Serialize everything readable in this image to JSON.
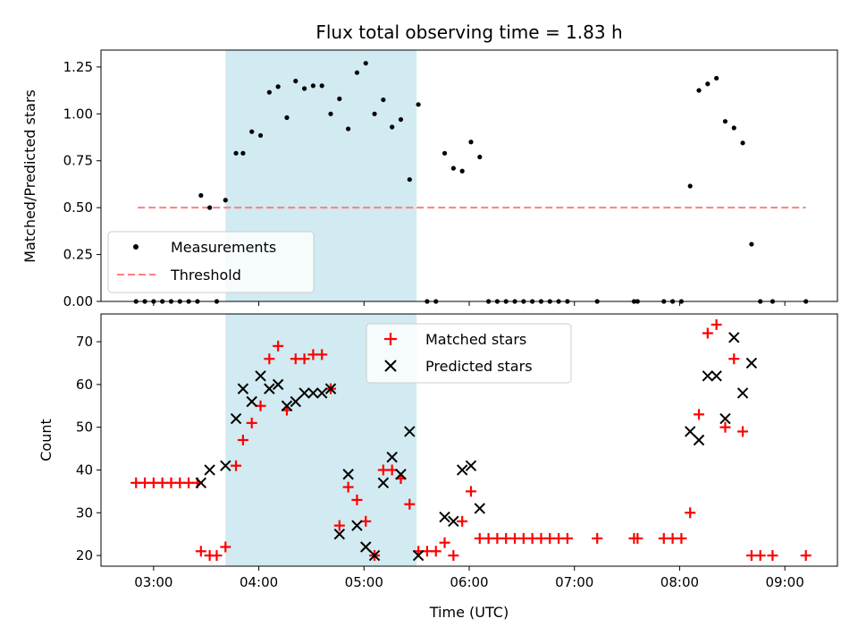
{
  "colors": {
    "measurement": "#000000",
    "threshold": "#ff7f7f",
    "matched": "#ff0000",
    "predicted": "#000000",
    "shade": "#add8e6"
  },
  "chart_data": [
    {
      "type": "scatter",
      "title": "Flux total observing time = 1.83 h",
      "xlabel": "",
      "ylabel": "Matched/Predicted stars",
      "xlim": [
        "02:30",
        "09:30"
      ],
      "ylim": [
        0,
        1.34
      ],
      "y_ticks": [
        "0.00",
        "0.25",
        "0.50",
        "0.75",
        "1.00",
        "1.25"
      ],
      "shaded_region": {
        "x_start": "03:41",
        "x_end": "05:30"
      },
      "legend_position": "lower-left",
      "legend": [
        "Measurements",
        "Threshold"
      ],
      "threshold": {
        "name": "Threshold",
        "y": 0.5,
        "x_start": "02:51",
        "x_end": "09:12"
      },
      "series": [
        {
          "name": "Measurements",
          "marker": "dot",
          "points": [
            [
              "02:50",
              0
            ],
            [
              "02:55",
              0
            ],
            [
              "03:00",
              0
            ],
            [
              "03:05",
              0
            ],
            [
              "03:10",
              0
            ],
            [
              "03:15",
              0
            ],
            [
              "03:20",
              0
            ],
            [
              "03:25",
              0
            ],
            [
              "03:27",
              0.565
            ],
            [
              "03:32",
              0.5
            ],
            [
              "03:36",
              0
            ],
            [
              "03:41",
              0.54
            ],
            [
              "03:47",
              0.79
            ],
            [
              "03:51",
              0.79
            ],
            [
              "03:56",
              0.905
            ],
            [
              "04:01",
              0.885
            ],
            [
              "04:06",
              1.115
            ],
            [
              "04:11",
              1.145
            ],
            [
              "04:16",
              0.98
            ],
            [
              "04:21",
              1.175
            ],
            [
              "04:26",
              1.135
            ],
            [
              "04:31",
              1.15
            ],
            [
              "04:36",
              1.15
            ],
            [
              "04:41",
              1.0
            ],
            [
              "04:46",
              1.08
            ],
            [
              "04:51",
              0.92
            ],
            [
              "04:56",
              1.22
            ],
            [
              "05:01",
              1.27
            ],
            [
              "05:06",
              1.0
            ],
            [
              "05:11",
              1.075
            ],
            [
              "05:16",
              0.93
            ],
            [
              "05:21",
              0.97
            ],
            [
              "05:26",
              0.65
            ],
            [
              "05:31",
              1.05
            ],
            [
              "05:36",
              0
            ],
            [
              "05:41",
              0
            ],
            [
              "05:46",
              0.79
            ],
            [
              "05:51",
              0.71
            ],
            [
              "05:56",
              0.695
            ],
            [
              "06:01",
              0.85
            ],
            [
              "06:06",
              0.77
            ],
            [
              "06:11",
              0
            ],
            [
              "06:16",
              0
            ],
            [
              "06:21",
              0
            ],
            [
              "06:26",
              0
            ],
            [
              "06:31",
              0
            ],
            [
              "06:36",
              0
            ],
            [
              "06:41",
              0
            ],
            [
              "06:46",
              0
            ],
            [
              "06:51",
              0
            ],
            [
              "06:56",
              0
            ],
            [
              "07:13",
              0
            ],
            [
              "07:34",
              0
            ],
            [
              "07:36",
              0
            ],
            [
              "07:51",
              0
            ],
            [
              "07:56",
              0
            ],
            [
              "08:01",
              0
            ],
            [
              "08:06",
              0.615
            ],
            [
              "08:11",
              1.125
            ],
            [
              "08:16",
              1.16
            ],
            [
              "08:21",
              1.19
            ],
            [
              "08:26",
              0.96
            ],
            [
              "08:31",
              0.925
            ],
            [
              "08:36",
              0.845
            ],
            [
              "08:41",
              0.305
            ],
            [
              "08:46",
              0
            ],
            [
              "08:53",
              0
            ],
            [
              "09:12",
              0
            ]
          ]
        }
      ]
    },
    {
      "type": "scatter",
      "title": "",
      "xlabel": "Time (UTC)",
      "ylabel": "Count",
      "xlim": [
        "02:30",
        "09:30"
      ],
      "ylim": [
        17.5,
        76.5
      ],
      "y_ticks": [
        "20",
        "30",
        "40",
        "50",
        "60",
        "70"
      ],
      "x_ticks": [
        "03:00",
        "04:00",
        "05:00",
        "06:00",
        "07:00",
        "08:00",
        "09:00"
      ],
      "shaded_region": {
        "x_start": "03:41",
        "x_end": "05:30"
      },
      "legend_position": "upper-center",
      "legend": [
        "Matched stars",
        "Predicted stars"
      ],
      "series": [
        {
          "name": "Matched stars",
          "marker": "plus",
          "points": [
            [
              "02:50",
              37
            ],
            [
              "02:55",
              37
            ],
            [
              "03:00",
              37
            ],
            [
              "03:05",
              37
            ],
            [
              "03:10",
              37
            ],
            [
              "03:15",
              37
            ],
            [
              "03:20",
              37
            ],
            [
              "03:25",
              37
            ],
            [
              "03:27",
              21
            ],
            [
              "03:32",
              20
            ],
            [
              "03:36",
              20
            ],
            [
              "03:41",
              22
            ],
            [
              "03:47",
              41
            ],
            [
              "03:51",
              47
            ],
            [
              "03:56",
              51
            ],
            [
              "04:01",
              55
            ],
            [
              "04:06",
              66
            ],
            [
              "04:11",
              69
            ],
            [
              "04:16",
              54
            ],
            [
              "04:21",
              66
            ],
            [
              "04:26",
              66
            ],
            [
              "04:31",
              67
            ],
            [
              "04:36",
              67
            ],
            [
              "04:41",
              59
            ],
            [
              "04:46",
              27
            ],
            [
              "04:51",
              36
            ],
            [
              "04:56",
              33
            ],
            [
              "05:01",
              28
            ],
            [
              "05:06",
              20
            ],
            [
              "05:11",
              40
            ],
            [
              "05:16",
              40
            ],
            [
              "05:21",
              38
            ],
            [
              "05:26",
              32
            ],
            [
              "05:31",
              21
            ],
            [
              "05:36",
              21
            ],
            [
              "05:41",
              21
            ],
            [
              "05:46",
              23
            ],
            [
              "05:51",
              20
            ],
            [
              "05:56",
              28
            ],
            [
              "06:01",
              35
            ],
            [
              "06:06",
              24
            ],
            [
              "06:11",
              24
            ],
            [
              "06:16",
              24
            ],
            [
              "06:21",
              24
            ],
            [
              "06:26",
              24
            ],
            [
              "06:31",
              24
            ],
            [
              "06:36",
              24
            ],
            [
              "06:41",
              24
            ],
            [
              "06:46",
              24
            ],
            [
              "06:51",
              24
            ],
            [
              "06:56",
              24
            ],
            [
              "07:13",
              24
            ],
            [
              "07:34",
              24
            ],
            [
              "07:36",
              24
            ],
            [
              "07:51",
              24
            ],
            [
              "07:56",
              24
            ],
            [
              "08:01",
              24
            ],
            [
              "08:06",
              30
            ],
            [
              "08:11",
              53
            ],
            [
              "08:16",
              72
            ],
            [
              "08:21",
              74
            ],
            [
              "08:26",
              50
            ],
            [
              "08:31",
              66
            ],
            [
              "08:36",
              49
            ],
            [
              "08:41",
              20
            ],
            [
              "08:46",
              20
            ],
            [
              "08:53",
              20
            ],
            [
              "09:12",
              20
            ]
          ]
        },
        {
          "name": "Predicted stars",
          "marker": "x",
          "points": [
            [
              "03:27",
              37
            ],
            [
              "03:32",
              40
            ],
            [
              "03:41",
              41
            ],
            [
              "03:47",
              52
            ],
            [
              "03:51",
              59
            ],
            [
              "03:56",
              56
            ],
            [
              "04:01",
              62
            ],
            [
              "04:06",
              59
            ],
            [
              "04:11",
              60
            ],
            [
              "04:16",
              55
            ],
            [
              "04:21",
              56
            ],
            [
              "04:26",
              58
            ],
            [
              "04:31",
              58
            ],
            [
              "04:36",
              58
            ],
            [
              "04:41",
              59
            ],
            [
              "04:46",
              25
            ],
            [
              "04:51",
              39
            ],
            [
              "04:56",
              27
            ],
            [
              "05:01",
              22
            ],
            [
              "05:06",
              20
            ],
            [
              "05:11",
              37
            ],
            [
              "05:16",
              43
            ],
            [
              "05:21",
              39
            ],
            [
              "05:26",
              49
            ],
            [
              "05:31",
              20
            ],
            [
              "05:46",
              29
            ],
            [
              "05:51",
              28
            ],
            [
              "05:56",
              40
            ],
            [
              "06:01",
              41
            ],
            [
              "06:06",
              31
            ],
            [
              "08:06",
              49
            ],
            [
              "08:11",
              47
            ],
            [
              "08:16",
              62
            ],
            [
              "08:21",
              62
            ],
            [
              "08:26",
              52
            ],
            [
              "08:31",
              71
            ],
            [
              "08:36",
              58
            ],
            [
              "08:41",
              65
            ]
          ]
        }
      ]
    }
  ]
}
